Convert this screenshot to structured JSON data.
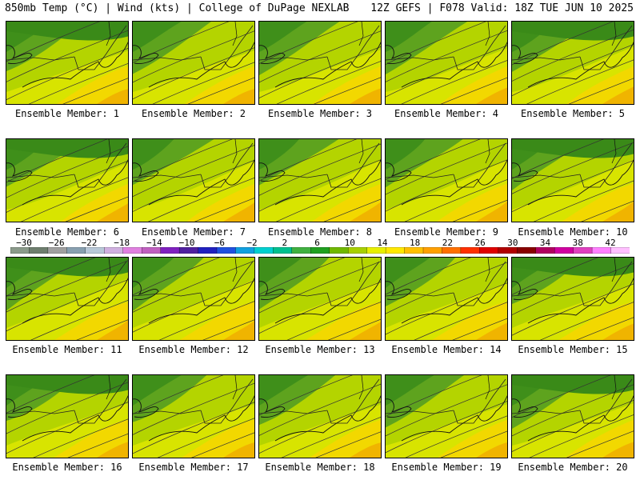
{
  "header": {
    "left": "850mb Temp (°C) | Wind (kts) | College of DuPage NEXLAB",
    "right": "12Z GEFS | F078 Valid: 18Z TUE JUN 10 2025"
  },
  "colorbar": {
    "labels": [
      "−30",
      "−26",
      "−22",
      "−18",
      "−14",
      "−10",
      "−6",
      "−2",
      "2",
      "6",
      "10",
      "14",
      "18",
      "22",
      "26",
      "30",
      "34",
      "38",
      "42"
    ],
    "colors": [
      "#8a9a8a",
      "#6e7e6e",
      "#a0a0a0",
      "#88a0b0",
      "#b8c8d8",
      "#d0b0e0",
      "#e080e0",
      "#c060c0",
      "#8020c0",
      "#5020a0",
      "#2020c0",
      "#2050e0",
      "#10a0e0",
      "#00d0d0",
      "#00c090",
      "#40b040",
      "#20a020",
      "#70b800",
      "#a8d000",
      "#e8f000",
      "#ffe800",
      "#ffc000",
      "#ffa000",
      "#ff7000",
      "#ff3000",
      "#e00000",
      "#b00000",
      "#880000",
      "#b00060",
      "#d000a0",
      "#e040c0",
      "#ff80ff",
      "#ffc0ff"
    ]
  },
  "panels": [
    {
      "label": "Ensemble Member: 1"
    },
    {
      "label": "Ensemble Member: 2"
    },
    {
      "label": "Ensemble Member: 3"
    },
    {
      "label": "Ensemble Member: 4"
    },
    {
      "label": "Ensemble Member: 5"
    },
    {
      "label": "Ensemble Member: 6"
    },
    {
      "label": "Ensemble Member: 7"
    },
    {
      "label": "Ensemble Member: 8"
    },
    {
      "label": "Ensemble Member: 9"
    },
    {
      "label": "Ensemble Member: 10"
    },
    {
      "label": "Ensemble Member: 11"
    },
    {
      "label": "Ensemble Member: 12"
    },
    {
      "label": "Ensemble Member: 13"
    },
    {
      "label": "Ensemble Member: 14"
    },
    {
      "label": "Ensemble Member: 15"
    },
    {
      "label": "Ensemble Member: 16"
    },
    {
      "label": "Ensemble Member: 17"
    },
    {
      "label": "Ensemble Member: 18"
    },
    {
      "label": "Ensemble Member: 19"
    },
    {
      "label": "Ensemble Member: 20"
    }
  ]
}
